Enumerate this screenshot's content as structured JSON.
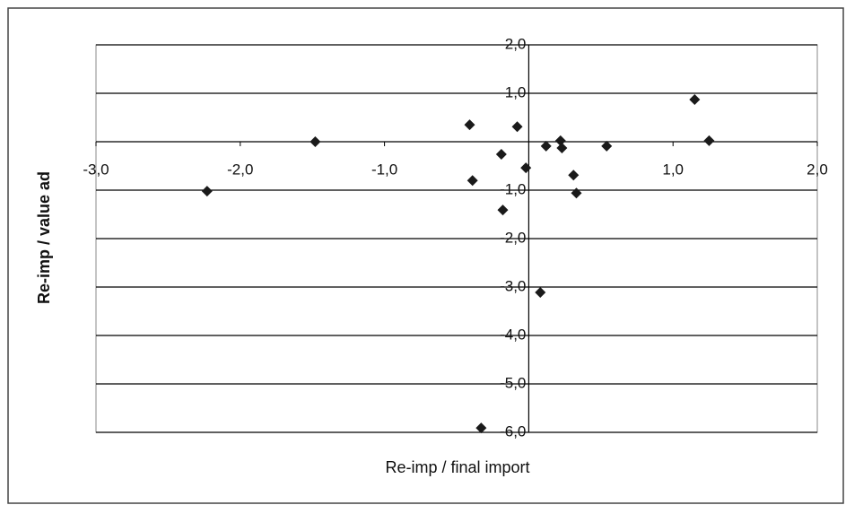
{
  "chart_data": {
    "type": "scatter",
    "x_label": "Re-imp / final import",
    "y_label": "Re-imp / value ad",
    "x": [
      -2.23,
      -1.48,
      -0.41,
      -0.39,
      -0.19,
      -0.18,
      -0.08,
      -0.02,
      0.12,
      0.22,
      0.23,
      0.08,
      0.31,
      0.33,
      0.54,
      1.15,
      1.25,
      -0.33
    ],
    "values": [
      -1.02,
      0.0,
      0.35,
      -0.8,
      -0.26,
      -1.41,
      0.31,
      -0.54,
      -0.09,
      0.02,
      -0.13,
      -3.11,
      -0.69,
      -1.06,
      -0.09,
      0.87,
      0.02,
      -5.91
    ],
    "color": "#1a1a1a",
    "xlim": [
      -3,
      2
    ],
    "ylim": [
      -6,
      2
    ],
    "xticks": [
      {
        "value": -3,
        "label": "-3,0"
      },
      {
        "value": -2,
        "label": "-2,0"
      },
      {
        "value": -1,
        "label": "-1,0"
      },
      {
        "value": 1,
        "label": "1,0"
      },
      {
        "value": 2,
        "label": "2,0"
      }
    ],
    "yticks": [
      {
        "value": 2,
        "label": "2,0"
      },
      {
        "value": 1,
        "label": "1,0"
      },
      {
        "value": -1,
        "label": "-1,0"
      },
      {
        "value": -2,
        "label": "-2,0"
      },
      {
        "value": -3,
        "label": "-3,0"
      },
      {
        "value": -4,
        "label": "-4,0"
      },
      {
        "value": -5,
        "label": "-5,0"
      },
      {
        "value": -6,
        "label": "-6,0"
      }
    ],
    "grid": true
  }
}
